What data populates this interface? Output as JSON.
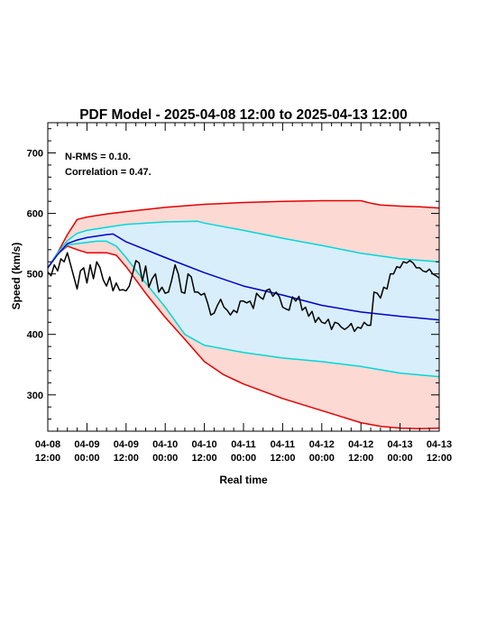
{
  "chart_data": {
    "type": "line",
    "title": "PDF Model - 2025-04-08 12:00 to 2025-04-13 12:00",
    "xlabel": "Real time",
    "ylabel": "Speed (km/s)",
    "xlim": [
      0,
      120
    ],
    "ylim": [
      240,
      750
    ],
    "xticks": [
      {
        "x": 0,
        "line1": "04-08",
        "line2": "12:00"
      },
      {
        "x": 12,
        "line1": "04-09",
        "line2": "00:00"
      },
      {
        "x": 24,
        "line1": "04-09",
        "line2": "12:00"
      },
      {
        "x": 36,
        "line1": "04-10",
        "line2": "00:00"
      },
      {
        "x": 48,
        "line1": "04-10",
        "line2": "12:00"
      },
      {
        "x": 60,
        "line1": "04-11",
        "line2": "00:00"
      },
      {
        "x": 72,
        "line1": "04-11",
        "line2": "12:00"
      },
      {
        "x": 84,
        "line1": "04-12",
        "line2": "00:00"
      },
      {
        "x": 96,
        "line1": "04-12",
        "line2": "12:00"
      },
      {
        "x": 108,
        "line1": "04-13",
        "line2": "00:00"
      },
      {
        "x": 120,
        "line1": "04-13",
        "line2": "12:00"
      }
    ],
    "yticks": [
      300,
      400,
      500,
      600,
      700
    ],
    "annotations": [
      "N-RMS = 0.10.",
      "Correlation = 0.47."
    ],
    "grid": false,
    "x_units": "hours after 2025-04-08 12:00",
    "series": [
      {
        "role": "outer_upper",
        "color": "#e60000",
        "x": [
          0,
          3,
          6,
          9,
          12,
          18,
          24,
          36,
          48,
          60,
          72,
          84,
          96,
          99,
          102,
          108,
          114,
          120
        ],
        "y": [
          510,
          535,
          565,
          590,
          594,
          599,
          603,
          610,
          615,
          618,
          620,
          621,
          621,
          617,
          614,
          612,
          611,
          609
        ]
      },
      {
        "role": "inner_upper",
        "color": "#00d8d8",
        "x": [
          0,
          3,
          6,
          9,
          12,
          18,
          24,
          36,
          46,
          48,
          60,
          72,
          84,
          96,
          108,
          120
        ],
        "y": [
          510,
          535,
          555,
          567,
          572,
          577,
          582,
          586,
          587,
          584,
          572,
          559,
          547,
          534,
          525,
          520
        ]
      },
      {
        "role": "median",
        "color": "#0000cc",
        "x": [
          0,
          3,
          6,
          9,
          12,
          18,
          20,
          24,
          36,
          48,
          60,
          72,
          84,
          96,
          108,
          120
        ],
        "y": [
          510,
          532,
          550,
          556,
          560,
          565,
          566,
          553,
          527,
          502,
          480,
          465,
          448,
          437,
          430,
          424
        ]
      },
      {
        "role": "inner_lower",
        "color": "#00d8d8",
        "x": [
          0,
          3,
          6,
          9,
          12,
          15,
          18,
          21,
          24,
          30,
          36,
          42,
          48,
          60,
          72,
          84,
          96,
          108,
          120
        ],
        "y": [
          510,
          533,
          548,
          550,
          552,
          554,
          554,
          546,
          527,
          485,
          445,
          400,
          382,
          370,
          361,
          355,
          347,
          336,
          330
        ]
      },
      {
        "role": "outer_lower",
        "color": "#e60000",
        "x": [
          0,
          3,
          6,
          9,
          12,
          15,
          18,
          21,
          24,
          30,
          36,
          42,
          48,
          54,
          60,
          72,
          84,
          96,
          102,
          108,
          114,
          120
        ],
        "y": [
          510,
          533,
          546,
          540,
          535,
          535,
          535,
          531,
          512,
          468,
          428,
          392,
          355,
          333,
          318,
          294,
          274,
          254,
          248,
          245,
          244,
          245
        ]
      },
      {
        "role": "observed",
        "color": "#000000",
        "x": [
          0,
          1,
          2,
          3,
          4,
          5,
          6,
          7,
          8,
          9,
          10,
          11,
          12,
          13,
          14,
          15,
          16,
          17,
          18,
          19,
          20,
          21,
          22,
          23,
          24,
          25,
          26,
          27,
          28,
          29,
          30,
          31,
          32,
          33,
          34,
          35,
          36,
          37,
          38,
          39,
          40,
          41,
          42,
          43,
          44,
          45,
          46,
          47,
          48,
          49,
          50,
          51,
          52,
          53,
          54,
          55,
          56,
          57,
          58,
          59,
          60,
          61,
          62,
          63,
          64,
          65,
          66,
          67,
          68,
          69,
          70,
          71,
          72,
          73,
          74,
          75,
          76,
          77,
          78,
          79,
          80,
          81,
          82,
          83,
          84,
          85,
          86,
          87,
          88,
          89,
          90,
          91,
          92,
          93,
          94,
          95,
          96,
          97,
          98,
          99,
          100,
          101,
          102,
          103,
          104,
          105,
          106,
          107,
          108,
          109,
          110,
          111,
          112,
          113,
          114,
          115,
          116,
          117,
          118,
          119,
          120
        ],
        "y": [
          503,
          497,
          515,
          505,
          525,
          520,
          535,
          515,
          495,
          475,
          505,
          510,
          485,
          515,
          492,
          520,
          510,
          490,
          480,
          495,
          472,
          485,
          473,
          474,
          472,
          480,
          500,
          522,
          518,
          488,
          513,
          478,
          492,
          500,
          470,
          478,
          468,
          470,
          490,
          515,
          500,
          470,
          468,
          500,
          495,
          470,
          470,
          465,
          468,
          452,
          432,
          435,
          448,
          458,
          445,
          440,
          432,
          440,
          436,
          455,
          455,
          452,
          455,
          443,
          468,
          462,
          458,
          473,
          475,
          463,
          470,
          462,
          445,
          442,
          440,
          462,
          455,
          463,
          440,
          445,
          430,
          438,
          420,
          428,
          420,
          418,
          425,
          408,
          420,
          418,
          412,
          408,
          412,
          418,
          405,
          412,
          410,
          420,
          415,
          415,
          470,
          468,
          460,
          478,
          475,
          500,
          500,
          512,
          510,
          520,
          518,
          522,
          518,
          510,
          510,
          505,
          503,
          508,
          500,
          497,
          493
        ]
      }
    ]
  }
}
